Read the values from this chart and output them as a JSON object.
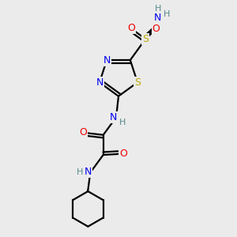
{
  "bg_color": "#ebebeb",
  "atom_colors": {
    "C": "#000000",
    "N": "#0000ee",
    "O": "#ee0000",
    "S": "#bbaa00",
    "H": "#558888"
  },
  "bond_color": "#000000",
  "bond_width": 1.6
}
